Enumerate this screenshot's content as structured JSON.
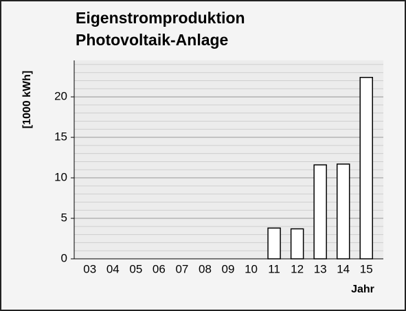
{
  "chart_data": {
    "type": "bar",
    "title": [
      "Eigenstromproduktion",
      "Photovoltaik-Anlage"
    ],
    "y_label": "[1000 kWh]",
    "x_label": "Jahr",
    "categories": [
      "03",
      "04",
      "05",
      "06",
      "07",
      "08",
      "09",
      "10",
      "11",
      "12",
      "13",
      "14",
      "15"
    ],
    "values": [
      0,
      0,
      0,
      0,
      0,
      0,
      0,
      0,
      3.8,
      3.7,
      11.6,
      11.7,
      22.4
    ],
    "color": "#ffffff",
    "ylim": [
      0,
      24.5
    ],
    "yticks": [
      0,
      5,
      10,
      15,
      20
    ],
    "grid": true,
    "minor_grid_step": 1
  }
}
